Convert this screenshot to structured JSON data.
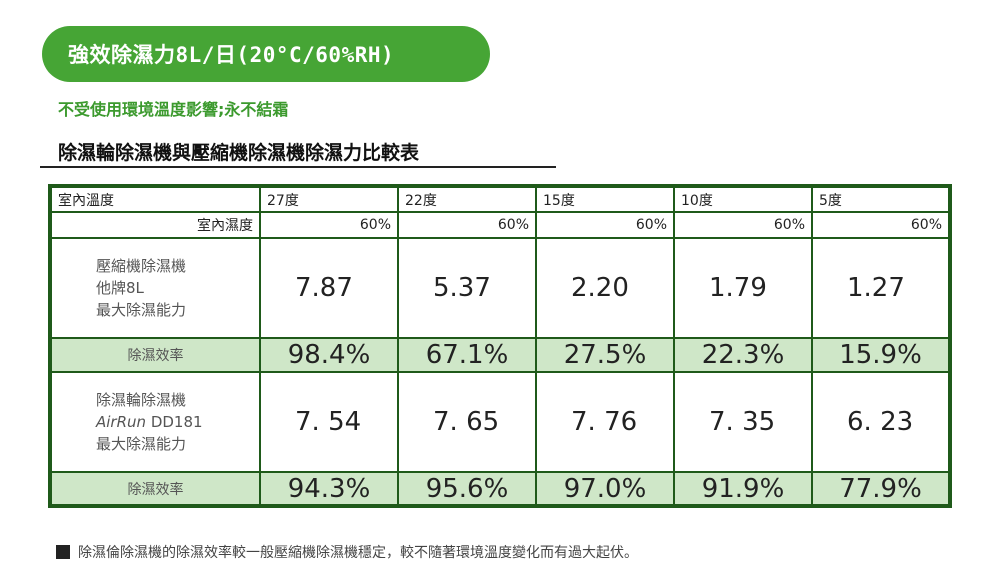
{
  "header": {
    "pill_title": "強效除濕力8L/日(20°C/60%RH)",
    "subtitle": "不受使用環境溫度影響;永不結霜",
    "table_title": "除濕輪除濕機與壓縮機除濕機除濕力比較表"
  },
  "table": {
    "temp_label": "室內溫度",
    "humidity_label": "室內濕度",
    "temps": [
      "27度",
      "22度",
      "15度",
      "10度",
      "5度"
    ],
    "humidities": [
      "60%",
      "60%",
      "60%",
      "60%",
      "60%"
    ],
    "compressor": {
      "label_line1": "壓縮機除濕機",
      "label_line2": "他牌8L",
      "label_line3": "最大除濕能力",
      "values": [
        "7.87",
        "5.37",
        "2.20",
        "1.79",
        "1.27"
      ],
      "efficiency_label": "除濕效率",
      "efficiency": [
        "98.4%",
        "67.1%",
        "27.5%",
        "22.3%",
        "15.9%"
      ]
    },
    "desiccant": {
      "label_line1": "除濕輪除濕機",
      "label_line2_italic": "AirRun",
      "label_line2_rest": " DD181",
      "label_line3": "最大除濕能力",
      "values": [
        "7. 54",
        "7. 65",
        "7. 76",
        "7. 35",
        "6. 23"
      ],
      "efficiency_label": "除濕效率",
      "efficiency": [
        "94.3%",
        "95.6%",
        "97.0%",
        "91.9%",
        "77.9%"
      ]
    }
  },
  "footnote": "除濕倫除濕機的除濕效率較一般壓縮機除濕機穩定，較不隨著環境溫度變化而有過大起伏。",
  "colors": {
    "brand_green": "#46a535",
    "table_border": "#1f5a1a",
    "efficiency_bg": "#cfe7c8"
  }
}
